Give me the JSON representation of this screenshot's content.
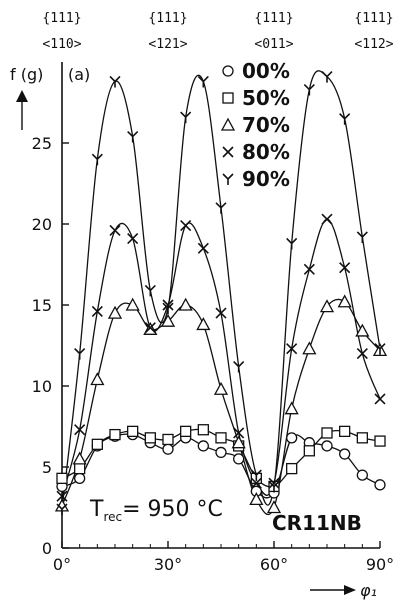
{
  "chart_data": {
    "type": "line",
    "ylabel": "f (g)",
    "panel_label": "(a)",
    "xlabel": "φ₁",
    "xlim": [
      0,
      90
    ],
    "ylim": [
      0,
      30
    ],
    "x_tick_labels": [
      "0°",
      "30°",
      "60°",
      "90°"
    ],
    "y_tick_labels": [
      "0",
      "5",
      "10",
      "15",
      "20",
      "25"
    ],
    "top_labels": [
      {
        "plane": "{111}",
        "dir": "<110>",
        "x": 0
      },
      {
        "plane": "{111}",
        "dir": "<121>",
        "x": 30
      },
      {
        "plane": "{111}",
        "dir": "<011>",
        "x": 60
      },
      {
        "plane": "{111}",
        "dir": "<112>",
        "x": 90
      }
    ],
    "annotation_temp_main": "T",
    "annotation_temp_sub": "rec",
    "annotation_temp_value": "= 950 °C",
    "annotation_sample": "CR11NB",
    "series": [
      {
        "name": "00%",
        "marker": "circle",
        "x": [
          0,
          5,
          10,
          15,
          20,
          25,
          30,
          35,
          40,
          45,
          50,
          55,
          60,
          65,
          70,
          75,
          80,
          85,
          90
        ],
        "y": [
          3.8,
          4.3,
          6.3,
          6.9,
          7.0,
          6.5,
          6.1,
          6.8,
          6.3,
          5.9,
          5.5,
          3.5,
          3.4,
          6.8,
          6.5,
          6.3,
          5.8,
          4.5,
          3.9
        ]
      },
      {
        "name": "50%",
        "marker": "square",
        "x": [
          0,
          5,
          10,
          15,
          20,
          25,
          30,
          35,
          40,
          45,
          50,
          55,
          60,
          65,
          70,
          75,
          80,
          85,
          90
        ],
        "y": [
          4.3,
          4.9,
          6.4,
          7.0,
          7.2,
          6.8,
          6.7,
          7.2,
          7.3,
          6.8,
          6.3,
          4.3,
          3.8,
          4.9,
          6.0,
          7.1,
          7.2,
          6.8,
          6.6
        ]
      },
      {
        "name": "70%",
        "marker": "triangle",
        "x": [
          0,
          5,
          10,
          15,
          20,
          25,
          30,
          35,
          40,
          45,
          50,
          55,
          60,
          65,
          70,
          75,
          80,
          85,
          90
        ],
        "y": [
          2.6,
          5.5,
          10.4,
          14.5,
          15.0,
          13.5,
          14.0,
          15.0,
          13.8,
          9.8,
          6.5,
          3.0,
          2.5,
          8.6,
          12.3,
          14.9,
          15.2,
          13.4,
          12.2
        ]
      },
      {
        "name": "80%",
        "marker": "cross",
        "x": [
          0,
          5,
          10,
          15,
          20,
          25,
          30,
          35,
          40,
          45,
          50,
          55,
          60,
          65,
          70,
          75,
          80,
          85,
          90
        ],
        "y": [
          3.2,
          7.3,
          14.6,
          19.6,
          19.1,
          13.6,
          15.0,
          19.9,
          18.5,
          14.5,
          7.1,
          4.0,
          4.0,
          12.3,
          17.2,
          20.3,
          17.3,
          12.0,
          9.2
        ]
      },
      {
        "name": "90%",
        "marker": "star",
        "x": [
          0,
          5,
          10,
          15,
          20,
          25,
          30,
          35,
          40,
          45,
          50,
          55,
          60,
          65,
          70,
          75,
          80,
          85,
          90
        ],
        "y": [
          2.4,
          12.0,
          24.0,
          28.8,
          25.4,
          15.9,
          14.8,
          26.6,
          28.8,
          21.0,
          11.2,
          4.5,
          3.8,
          18.8,
          28.3,
          29.1,
          26.5,
          19.2,
          12.3
        ]
      }
    ]
  }
}
